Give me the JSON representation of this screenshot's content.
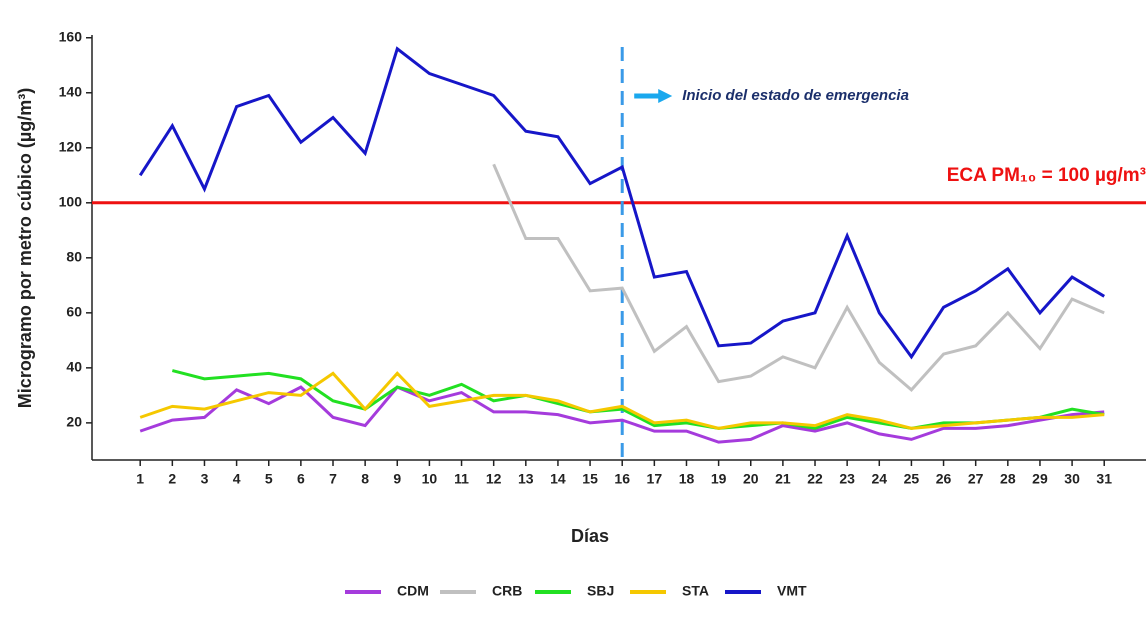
{
  "chart_data": {
    "type": "line",
    "x_label": "Días",
    "y_label": "Microgramo por metro cúbico (µg/m³)",
    "x": [
      1,
      2,
      3,
      4,
      5,
      6,
      7,
      8,
      9,
      10,
      11,
      12,
      13,
      14,
      15,
      16,
      17,
      18,
      19,
      20,
      21,
      22,
      23,
      24,
      25,
      26,
      27,
      28,
      29,
      30,
      31
    ],
    "xlim": [
      -0.5,
      32.3
    ],
    "xticks": [
      1,
      2,
      3,
      4,
      5,
      6,
      7,
      8,
      9,
      10,
      11,
      12,
      13,
      14,
      15,
      16,
      17,
      18,
      19,
      20,
      21,
      22,
      23,
      24,
      25,
      26,
      27,
      28,
      29,
      30,
      31
    ],
    "ylim": [
      6.5,
      161
    ],
    "yticks": [
      20,
      40,
      60,
      80,
      100,
      120,
      140,
      160
    ],
    "hlines": [
      {
        "value": 100,
        "label": "ECA PM₁₀ = 100 µg/m³",
        "color": "#ee1111"
      }
    ],
    "vlines": [
      {
        "value": 16,
        "label": "Inicio del estado de emergencia",
        "color": "#3a9ae8"
      }
    ],
    "series": [
      {
        "name": "CDM",
        "color": "#a53bdc",
        "values": [
          17,
          21,
          22,
          32,
          27,
          33,
          22,
          19,
          33,
          28,
          31,
          24,
          24,
          23,
          20,
          21,
          17,
          17,
          13,
          14,
          19,
          17,
          20,
          16,
          14,
          18,
          18,
          19,
          21,
          23,
          24
        ]
      },
      {
        "name": "CRB",
        "color": "#c0c0c0",
        "values": [
          null,
          null,
          null,
          null,
          null,
          null,
          null,
          null,
          null,
          null,
          null,
          114,
          87,
          87,
          68,
          69,
          46,
          55,
          35,
          37,
          44,
          40,
          62,
          42,
          32,
          45,
          48,
          60,
          47,
          65,
          60
        ]
      },
      {
        "name": "SBJ",
        "color": "#22e022",
        "values": [
          null,
          39,
          36,
          37,
          38,
          36,
          28,
          25,
          33,
          30,
          34,
          28,
          30,
          27,
          24,
          25,
          19,
          20,
          18,
          19,
          20,
          18,
          22,
          20,
          18,
          20,
          20,
          21,
          22,
          25,
          23
        ]
      },
      {
        "name": "STA",
        "color": "#f5c800",
        "values": [
          22,
          26,
          25,
          28,
          31,
          30,
          38,
          25,
          38,
          26,
          28,
          30,
          30,
          28,
          24,
          26,
          20,
          21,
          18,
          20,
          20,
          19,
          23,
          21,
          18,
          19,
          20,
          21,
          22,
          22,
          23
        ]
      },
      {
        "name": "VMT",
        "color": "#1616c8",
        "values": [
          110,
          128,
          105,
          135,
          139,
          122,
          131,
          118,
          156,
          147,
          143,
          139,
          126,
          124,
          107,
          113,
          73,
          75,
          48,
          49,
          57,
          60,
          88,
          60,
          44,
          62,
          68,
          76,
          60,
          73,
          66
        ]
      }
    ]
  }
}
